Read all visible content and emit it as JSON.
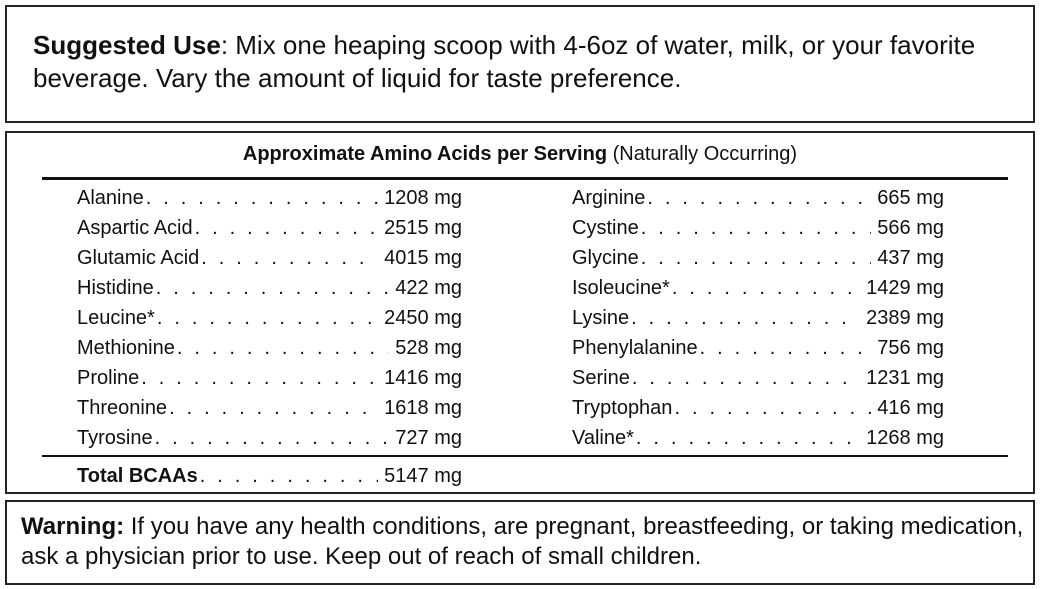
{
  "suggested_use": {
    "label": "Suggested Use",
    "text": ": Mix one heaping scoop with 4-6oz of water, milk, or your favorite beverage. Vary the amount of liquid for taste preference."
  },
  "amino": {
    "title": "Approximate Amino Acids per Serving",
    "subtitle": " (Naturally Occurring)",
    "left": [
      {
        "name": "Alanine",
        "value": "1208 mg"
      },
      {
        "name": "Aspartic Acid",
        "value": "2515 mg"
      },
      {
        "name": "Glutamic Acid",
        "value": "4015 mg"
      },
      {
        "name": "Histidine",
        "value": "422 mg"
      },
      {
        "name": "Leucine*",
        "value": "2450 mg"
      },
      {
        "name": "Methionine",
        "value": "528 mg"
      },
      {
        "name": "Proline",
        "value": "1416 mg"
      },
      {
        "name": "Threonine",
        "value": "1618 mg"
      },
      {
        "name": "Tyrosine",
        "value": "727 mg"
      }
    ],
    "right": [
      {
        "name": "Arginine",
        "value": "665 mg"
      },
      {
        "name": "Cystine",
        "value": "566 mg"
      },
      {
        "name": "Glycine",
        "value": "437 mg"
      },
      {
        "name": "Isoleucine*",
        "value": "1429 mg"
      },
      {
        "name": "Lysine",
        "value": "2389 mg"
      },
      {
        "name": "Phenylalanine",
        "value": "756 mg"
      },
      {
        "name": "Serine",
        "value": "1231 mg"
      },
      {
        "name": "Tryptophan",
        "value": "416 mg"
      },
      {
        "name": "Valine*",
        "value": "1268 mg"
      }
    ],
    "total": {
      "name": "Total BCAAs",
      "value": "5147 mg"
    }
  },
  "warning": {
    "label": "Warning:",
    "text": " If you have any health conditions, are pregnant, breastfeeding, or taking medication, ask a physician prior to use. Keep out of reach of small children."
  }
}
